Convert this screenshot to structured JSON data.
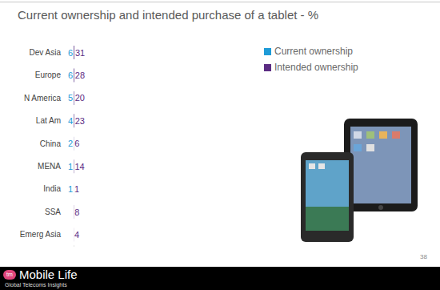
{
  "chart_data": {
    "type": "bar",
    "title": "Current ownership and intended purchase of a tablet - %",
    "orientation": "horizontal",
    "stacked": true,
    "data_labels": true,
    "tick_labels": "y",
    "legend": "right",
    "categories": [
      "Dev Asia",
      "Europe",
      "N America",
      "Lat Am",
      "China",
      "MENA",
      "India",
      "SSA",
      "Emerg Asia"
    ],
    "series": [
      {
        "name": "Current ownership",
        "color": "#1e9bd7",
        "values": [
          6,
          6,
          5,
          4,
          2,
          1,
          1,
          0,
          0
        ]
      },
      {
        "name": "Intended ownership",
        "color": "#5b2c83",
        "values": [
          31,
          28,
          20,
          23,
          6,
          14,
          1,
          8,
          4
        ]
      }
    ],
    "xlim": [
      0,
      40
    ],
    "xticks": [],
    "annotations": [
      "tm",
      "Mobile Life",
      "Global Telecoms Insights",
      "38"
    ]
  }
}
